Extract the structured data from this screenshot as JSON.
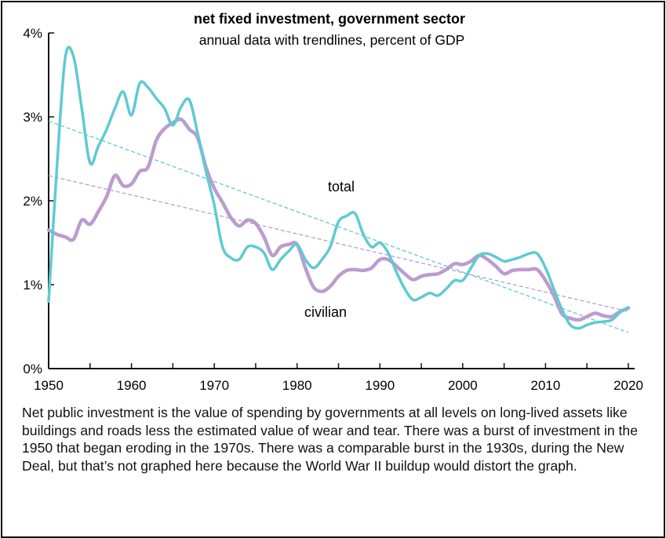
{
  "chart_data": {
    "type": "line",
    "title": "net fixed investment, government sector",
    "subtitle": "annual data with trendlines, percent of GDP",
    "xlabel": "",
    "ylabel": "",
    "xlim": [
      1950,
      2020
    ],
    "ylim": [
      0,
      4
    ],
    "x_ticks": [
      "1950",
      "1960",
      "1970",
      "1980",
      "1990",
      "2000",
      "2010",
      "2020"
    ],
    "y_ticks": [
      "0%",
      "1%",
      "2%",
      "3%",
      "4%"
    ],
    "grid": false,
    "x": [
      1950,
      1951,
      1952,
      1953,
      1954,
      1955,
      1956,
      1957,
      1958,
      1959,
      1960,
      1961,
      1962,
      1963,
      1964,
      1965,
      1966,
      1967,
      1968,
      1969,
      1970,
      1971,
      1972,
      1973,
      1974,
      1975,
      1976,
      1977,
      1978,
      1979,
      1980,
      1981,
      1982,
      1983,
      1984,
      1985,
      1986,
      1987,
      1988,
      1989,
      1990,
      1991,
      1992,
      1993,
      1994,
      1995,
      1996,
      1997,
      1998,
      1999,
      2000,
      2001,
      2002,
      2003,
      2004,
      2005,
      2006,
      2007,
      2008,
      2009,
      2010,
      2011,
      2012,
      2013,
      2014,
      2015,
      2016,
      2017,
      2018,
      2019,
      2020
    ],
    "series": [
      {
        "name": "total",
        "color": "#5fcad2",
        "values": [
          0.8,
          2.4,
          3.7,
          3.72,
          3.1,
          2.45,
          2.65,
          2.85,
          3.1,
          3.3,
          3.02,
          3.4,
          3.35,
          3.22,
          3.1,
          2.9,
          3.12,
          3.2,
          2.8,
          2.35,
          1.95,
          1.45,
          1.32,
          1.3,
          1.45,
          1.45,
          1.38,
          1.18,
          1.3,
          1.4,
          1.48,
          1.3,
          1.2,
          1.3,
          1.45,
          1.75,
          1.82,
          1.85,
          1.6,
          1.45,
          1.5,
          1.38,
          1.15,
          0.95,
          0.82,
          0.85,
          0.9,
          0.87,
          0.95,
          1.05,
          1.05,
          1.2,
          1.35,
          1.37,
          1.33,
          1.28,
          1.3,
          1.33,
          1.37,
          1.37,
          1.2,
          0.95,
          0.7,
          0.52,
          0.48,
          0.52,
          0.55,
          0.56,
          0.58,
          0.67,
          0.73
        ],
        "trend": [
          2.95,
          0.43
        ]
      },
      {
        "name": "civilian",
        "color": "#bb9ccf",
        "values": [
          1.65,
          1.6,
          1.57,
          1.54,
          1.77,
          1.72,
          1.87,
          2.05,
          2.3,
          2.18,
          2.2,
          2.35,
          2.4,
          2.72,
          2.86,
          2.93,
          2.97,
          2.85,
          2.75,
          2.4,
          2.15,
          1.98,
          1.8,
          1.7,
          1.77,
          1.73,
          1.57,
          1.35,
          1.45,
          1.48,
          1.48,
          1.2,
          0.97,
          0.92,
          0.98,
          1.1,
          1.17,
          1.18,
          1.17,
          1.2,
          1.3,
          1.3,
          1.22,
          1.13,
          1.06,
          1.1,
          1.12,
          1.13,
          1.18,
          1.25,
          1.24,
          1.28,
          1.35,
          1.3,
          1.22,
          1.13,
          1.17,
          1.18,
          1.18,
          1.18,
          1.05,
          0.87,
          0.65,
          0.6,
          0.58,
          0.62,
          0.66,
          0.63,
          0.62,
          0.68,
          0.72
        ],
        "trend": [
          2.3,
          0.68
        ]
      }
    ]
  },
  "caption": "Net public investment is the value of spending by governments at all levels on long-lived assets like buildings and roads less the estimated value of wear and tear. There was a burst of investment in the 1950 that began eroding in the 1970s. There was a comparable burst in the 1930s, during the New Deal, but that’s not graphed here because the World War II buildup would distort the graph."
}
